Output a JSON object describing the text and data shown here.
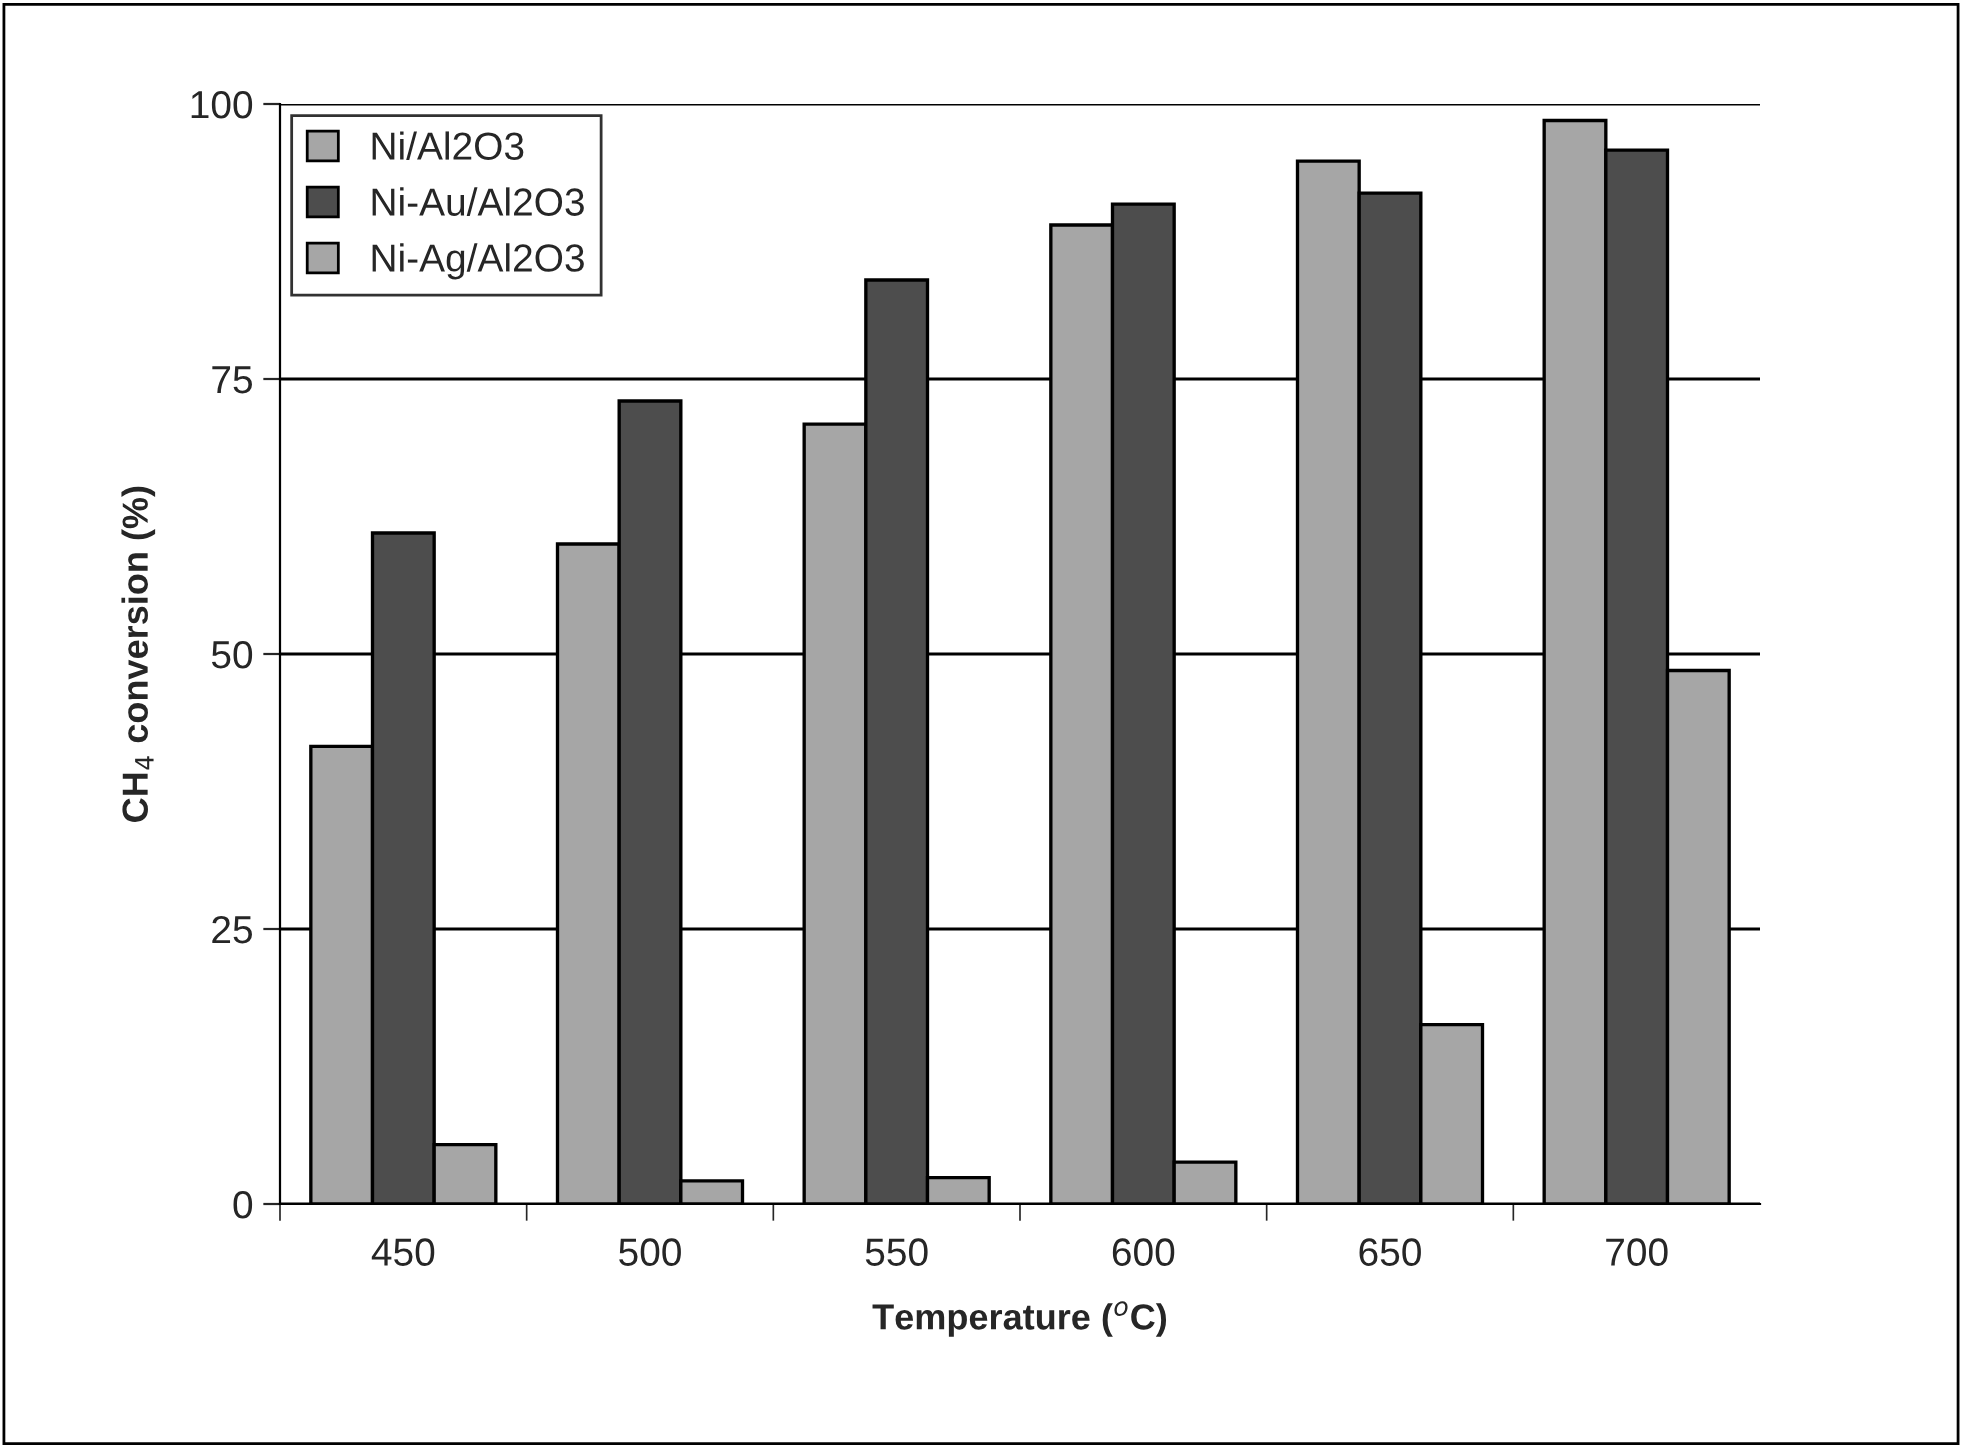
{
  "chart_data": {
    "type": "bar",
    "xlabel": "Temperature ($^{o}$C)",
    "ylabel": "CH$_{4}$ conversion (%)",
    "categories": [
      "450",
      "500",
      "550",
      "600",
      "650",
      "700"
    ],
    "series": [
      {
        "name": "Ni/Al2O3",
        "color": "#a6a6a6",
        "values": [
          41.6,
          60.0,
          70.9,
          89.0,
          94.8,
          98.5
        ]
      },
      {
        "name": "Ni-Au/Al2O3",
        "color": "#4d4d4d",
        "values": [
          61.0,
          73.0,
          84.0,
          90.9,
          91.9,
          95.8
        ]
      },
      {
        "name": "Ni-Ag/Al2O3",
        "color": "#a6a6a6",
        "values": [
          5.4,
          2.1,
          2.4,
          3.8,
          16.3,
          48.5
        ]
      }
    ],
    "ylim": [
      0,
      100
    ],
    "yticks": [
      0,
      25,
      50,
      75,
      100
    ],
    "grid": "y",
    "legend": "top left"
  }
}
